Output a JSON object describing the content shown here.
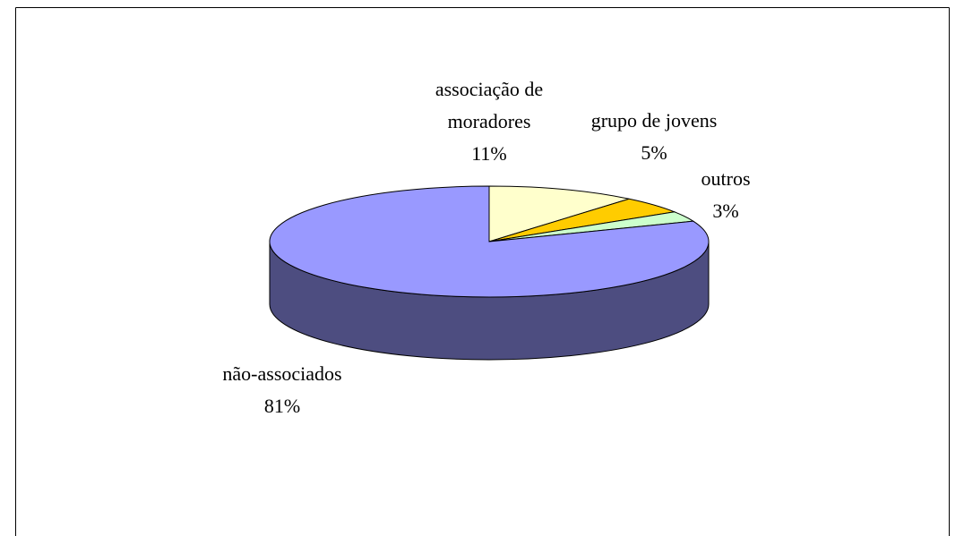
{
  "chart_data": {
    "type": "pie",
    "categories": [
      "associação de moradores",
      "grupo de jovens",
      "outros",
      "não-associados"
    ],
    "values": [
      11,
      5,
      3,
      81
    ],
    "value_labels": [
      "11%",
      "5%",
      "3%",
      "81%"
    ],
    "colors": [
      "#ffffcc",
      "#ffcc00",
      "#ccffcc",
      "#9999ff"
    ],
    "three_d": true
  }
}
